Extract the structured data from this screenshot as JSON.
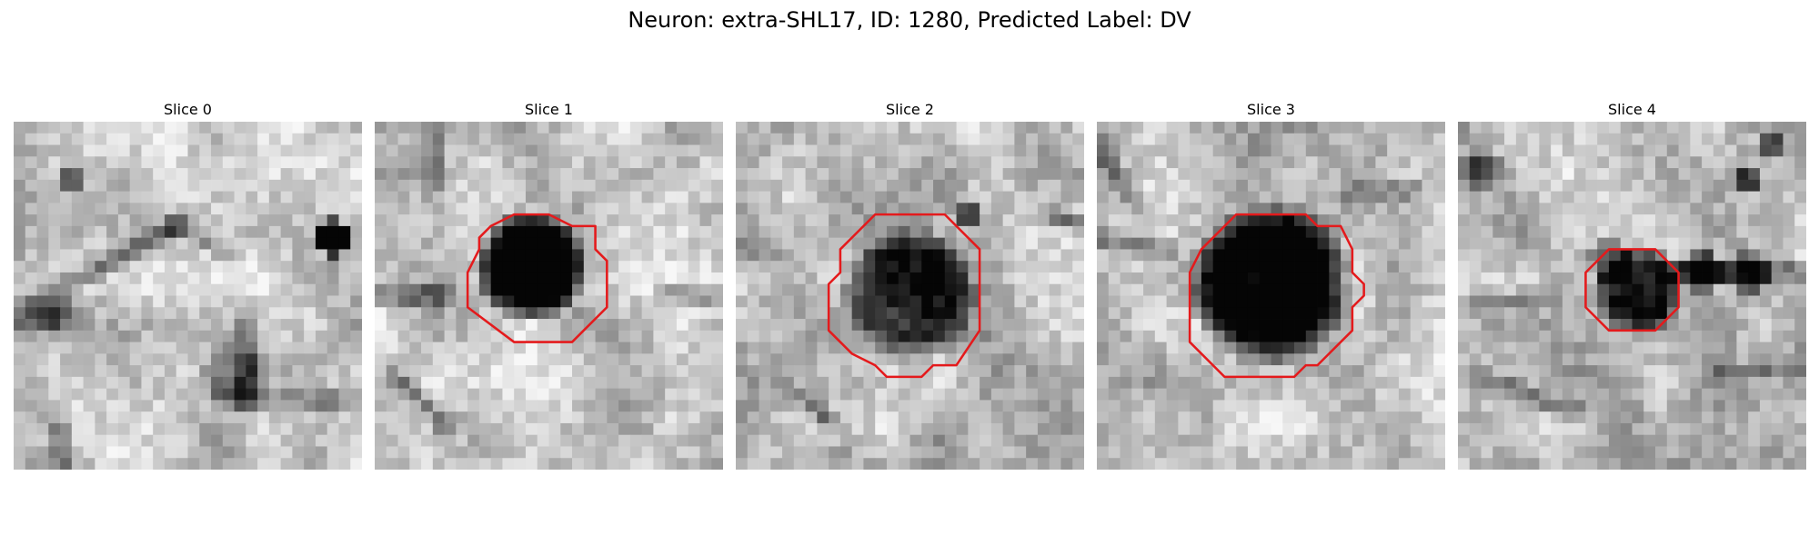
{
  "figure": {
    "title": "Neuron: extra-SHL17, ID: 1280, Predicted Label: DV"
  },
  "panels": [
    {
      "title": "Slice 0"
    },
    {
      "title": "Slice 1"
    },
    {
      "title": "Slice 2"
    },
    {
      "title": "Slice 3"
    },
    {
      "title": "Slice 4"
    }
  ],
  "colors": {
    "contour": "#e41a1c"
  }
}
